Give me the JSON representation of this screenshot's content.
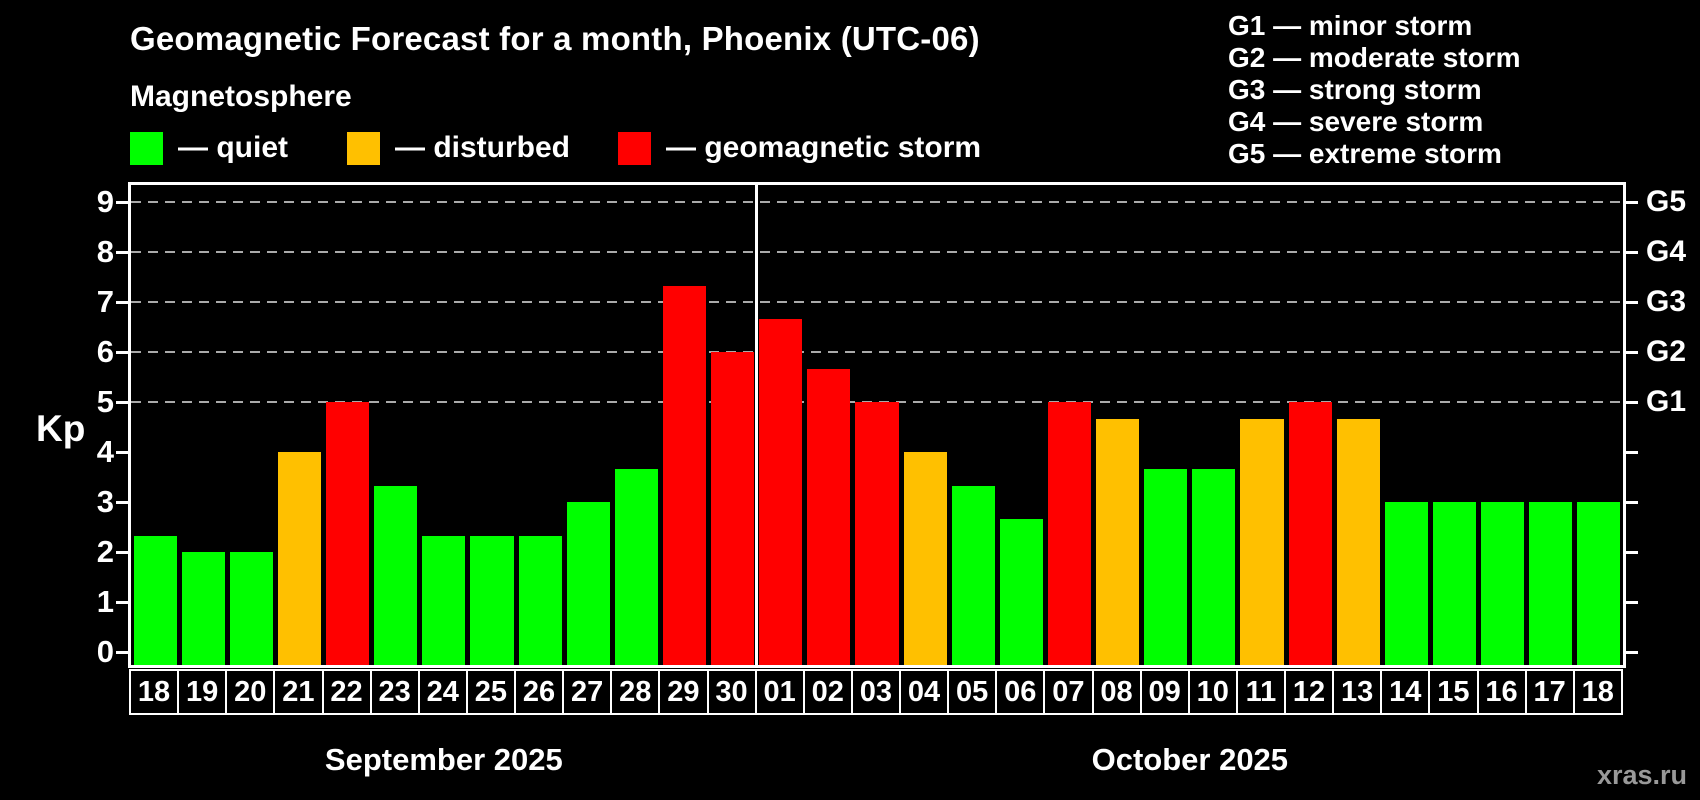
{
  "header": {
    "title": "Geomagnetic Forecast for a month, Phoenix (UTC-06)",
    "subtitle": "Magnetosphere"
  },
  "legend": {
    "colors": {
      "quiet": "#00ff00",
      "disturbed": "#ffc000",
      "storm": "#ff0000"
    },
    "items": [
      {
        "status": "quiet",
        "label": "— quiet",
        "x": 130
      },
      {
        "status": "disturbed",
        "label": "— disturbed",
        "x": 347
      },
      {
        "status": "storm",
        "label": "— geomagnetic storm",
        "x": 618
      }
    ]
  },
  "g_legend": {
    "items": [
      "G1 — minor storm",
      "G2 — moderate storm",
      "G3 — strong storm",
      "G4 — severe storm",
      "G5 — extreme storm"
    ]
  },
  "watermark": "xras.ru",
  "chart_data": {
    "type": "bar",
    "title": "Geomagnetic Forecast for a month, Phoenix (UTC-06)",
    "ylabel": "Kp",
    "ylim": [
      0,
      9
    ],
    "yticks": [
      "0",
      "1",
      "2",
      "3",
      "4",
      "5",
      "6",
      "7",
      "8",
      "9"
    ],
    "grid_kp": [
      5,
      6,
      7,
      8,
      9
    ],
    "grid_on": true,
    "right_axis": [
      {
        "label": "G1",
        "kp": 5
      },
      {
        "label": "G2",
        "kp": 6
      },
      {
        "label": "G3",
        "kp": 7
      },
      {
        "label": "G4",
        "kp": 8
      },
      {
        "label": "G5",
        "kp": 9
      }
    ],
    "months": [
      {
        "label": "September 2025",
        "days": 13
      },
      {
        "label": "October 2025",
        "days": 18
      }
    ],
    "days": [
      {
        "month": "sep",
        "day": "18",
        "kp": 2.33,
        "status": "quiet"
      },
      {
        "month": "sep",
        "day": "19",
        "kp": 2.0,
        "status": "quiet"
      },
      {
        "month": "sep",
        "day": "20",
        "kp": 2.0,
        "status": "quiet"
      },
      {
        "month": "sep",
        "day": "21",
        "kp": 4.0,
        "status": "disturbed"
      },
      {
        "month": "sep",
        "day": "22",
        "kp": 5.0,
        "status": "storm"
      },
      {
        "month": "sep",
        "day": "23",
        "kp": 3.33,
        "status": "quiet"
      },
      {
        "month": "sep",
        "day": "24",
        "kp": 2.33,
        "status": "quiet"
      },
      {
        "month": "sep",
        "day": "25",
        "kp": 2.33,
        "status": "quiet"
      },
      {
        "month": "sep",
        "day": "26",
        "kp": 2.33,
        "status": "quiet"
      },
      {
        "month": "sep",
        "day": "27",
        "kp": 3.0,
        "status": "quiet"
      },
      {
        "month": "sep",
        "day": "28",
        "kp": 3.67,
        "status": "quiet"
      },
      {
        "month": "sep",
        "day": "29",
        "kp": 7.33,
        "status": "storm"
      },
      {
        "month": "sep",
        "day": "30",
        "kp": 6.0,
        "status": "storm"
      },
      {
        "month": "oct",
        "day": "01",
        "kp": 6.67,
        "status": "storm"
      },
      {
        "month": "oct",
        "day": "02",
        "kp": 5.67,
        "status": "storm"
      },
      {
        "month": "oct",
        "day": "03",
        "kp": 5.0,
        "status": "storm"
      },
      {
        "month": "oct",
        "day": "04",
        "kp": 4.0,
        "status": "disturbed"
      },
      {
        "month": "oct",
        "day": "05",
        "kp": 3.33,
        "status": "quiet"
      },
      {
        "month": "oct",
        "day": "06",
        "kp": 2.67,
        "status": "quiet"
      },
      {
        "month": "oct",
        "day": "07",
        "kp": 5.0,
        "status": "storm"
      },
      {
        "month": "oct",
        "day": "08",
        "kp": 4.67,
        "status": "disturbed"
      },
      {
        "month": "oct",
        "day": "09",
        "kp": 3.67,
        "status": "quiet"
      },
      {
        "month": "oct",
        "day": "10",
        "kp": 3.67,
        "status": "quiet"
      },
      {
        "month": "oct",
        "day": "11",
        "kp": 4.67,
        "status": "disturbed"
      },
      {
        "month": "oct",
        "day": "12",
        "kp": 5.0,
        "status": "storm"
      },
      {
        "month": "oct",
        "day": "13",
        "kp": 4.67,
        "status": "disturbed"
      },
      {
        "month": "oct",
        "day": "14",
        "kp": 3.0,
        "status": "quiet"
      },
      {
        "month": "oct",
        "day": "15",
        "kp": 3.0,
        "status": "quiet"
      },
      {
        "month": "oct",
        "day": "16",
        "kp": 3.0,
        "status": "quiet"
      },
      {
        "month": "oct",
        "day": "17",
        "kp": 3.0,
        "status": "quiet"
      },
      {
        "month": "oct",
        "day": "18",
        "kp": 3.0,
        "status": "quiet"
      }
    ]
  }
}
